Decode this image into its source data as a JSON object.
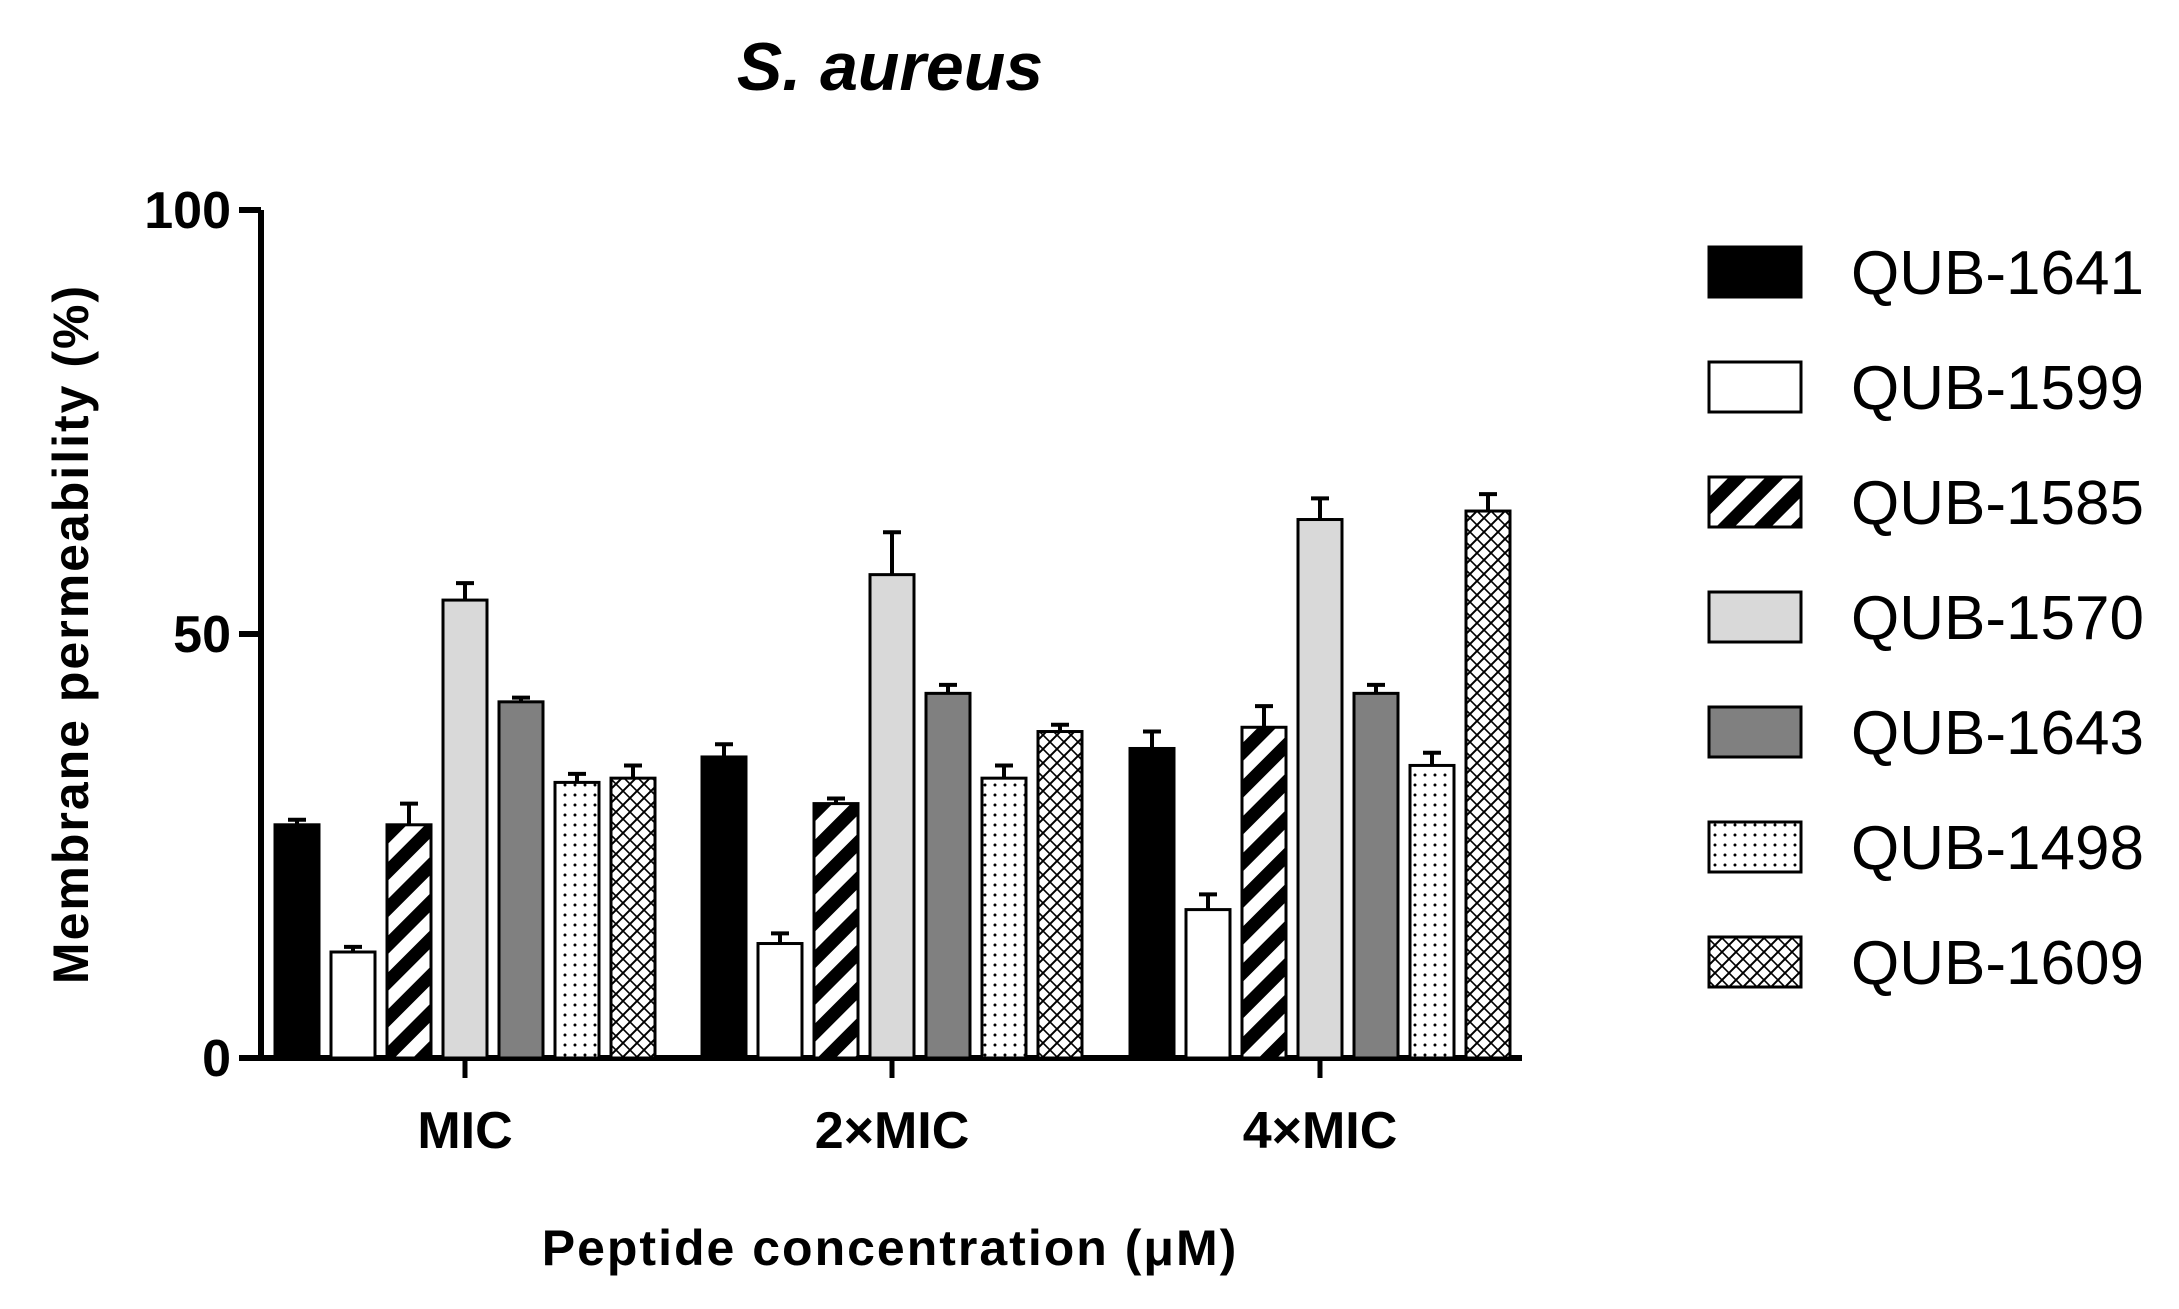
{
  "chart_data": {
    "type": "bar",
    "title": "S. aureus",
    "xlabel": "Peptide concentration (μM)",
    "ylabel": "Membrane permeability (%)",
    "ylim": [
      0,
      100
    ],
    "yticks": [
      0,
      50,
      100
    ],
    "categories": [
      "MIC",
      "2×MIC",
      "4×MIC"
    ],
    "legend_position": "right",
    "series": [
      {
        "name": "QUB-1641",
        "fill": "black",
        "color": "#000000",
        "values": [
          27.5,
          35.5,
          36.5
        ],
        "errors": [
          0.6,
          1.5,
          2.0
        ]
      },
      {
        "name": "QUB-1599",
        "fill": "white",
        "color": "#ffffff",
        "values": [
          12.5,
          13.5,
          17.5
        ],
        "errors": [
          0.6,
          1.2,
          1.8
        ]
      },
      {
        "name": "QUB-1585",
        "fill": "stripes",
        "color": "#000000",
        "values": [
          27.5,
          30.0,
          39.0
        ],
        "errors": [
          2.5,
          0.6,
          2.5
        ]
      },
      {
        "name": "QUB-1570",
        "fill": "light",
        "color": "#d9d9d9",
        "values": [
          54.0,
          57.0,
          63.5
        ],
        "errors": [
          2.0,
          5.0,
          2.5
        ]
      },
      {
        "name": "QUB-1643",
        "fill": "gray",
        "color": "#808080",
        "values": [
          42.0,
          43.0,
          43.0
        ],
        "errors": [
          0.5,
          1.0,
          1.0
        ]
      },
      {
        "name": "QUB-1498",
        "fill": "dots",
        "color": "#000000",
        "values": [
          32.5,
          33.0,
          34.5
        ],
        "errors": [
          1.0,
          1.5,
          1.5
        ]
      },
      {
        "name": "QUB-1609",
        "fill": "crosshatch",
        "color": "#000000",
        "values": [
          33.0,
          38.5,
          64.5
        ],
        "errors": [
          1.5,
          0.8,
          2.0
        ]
      }
    ]
  }
}
